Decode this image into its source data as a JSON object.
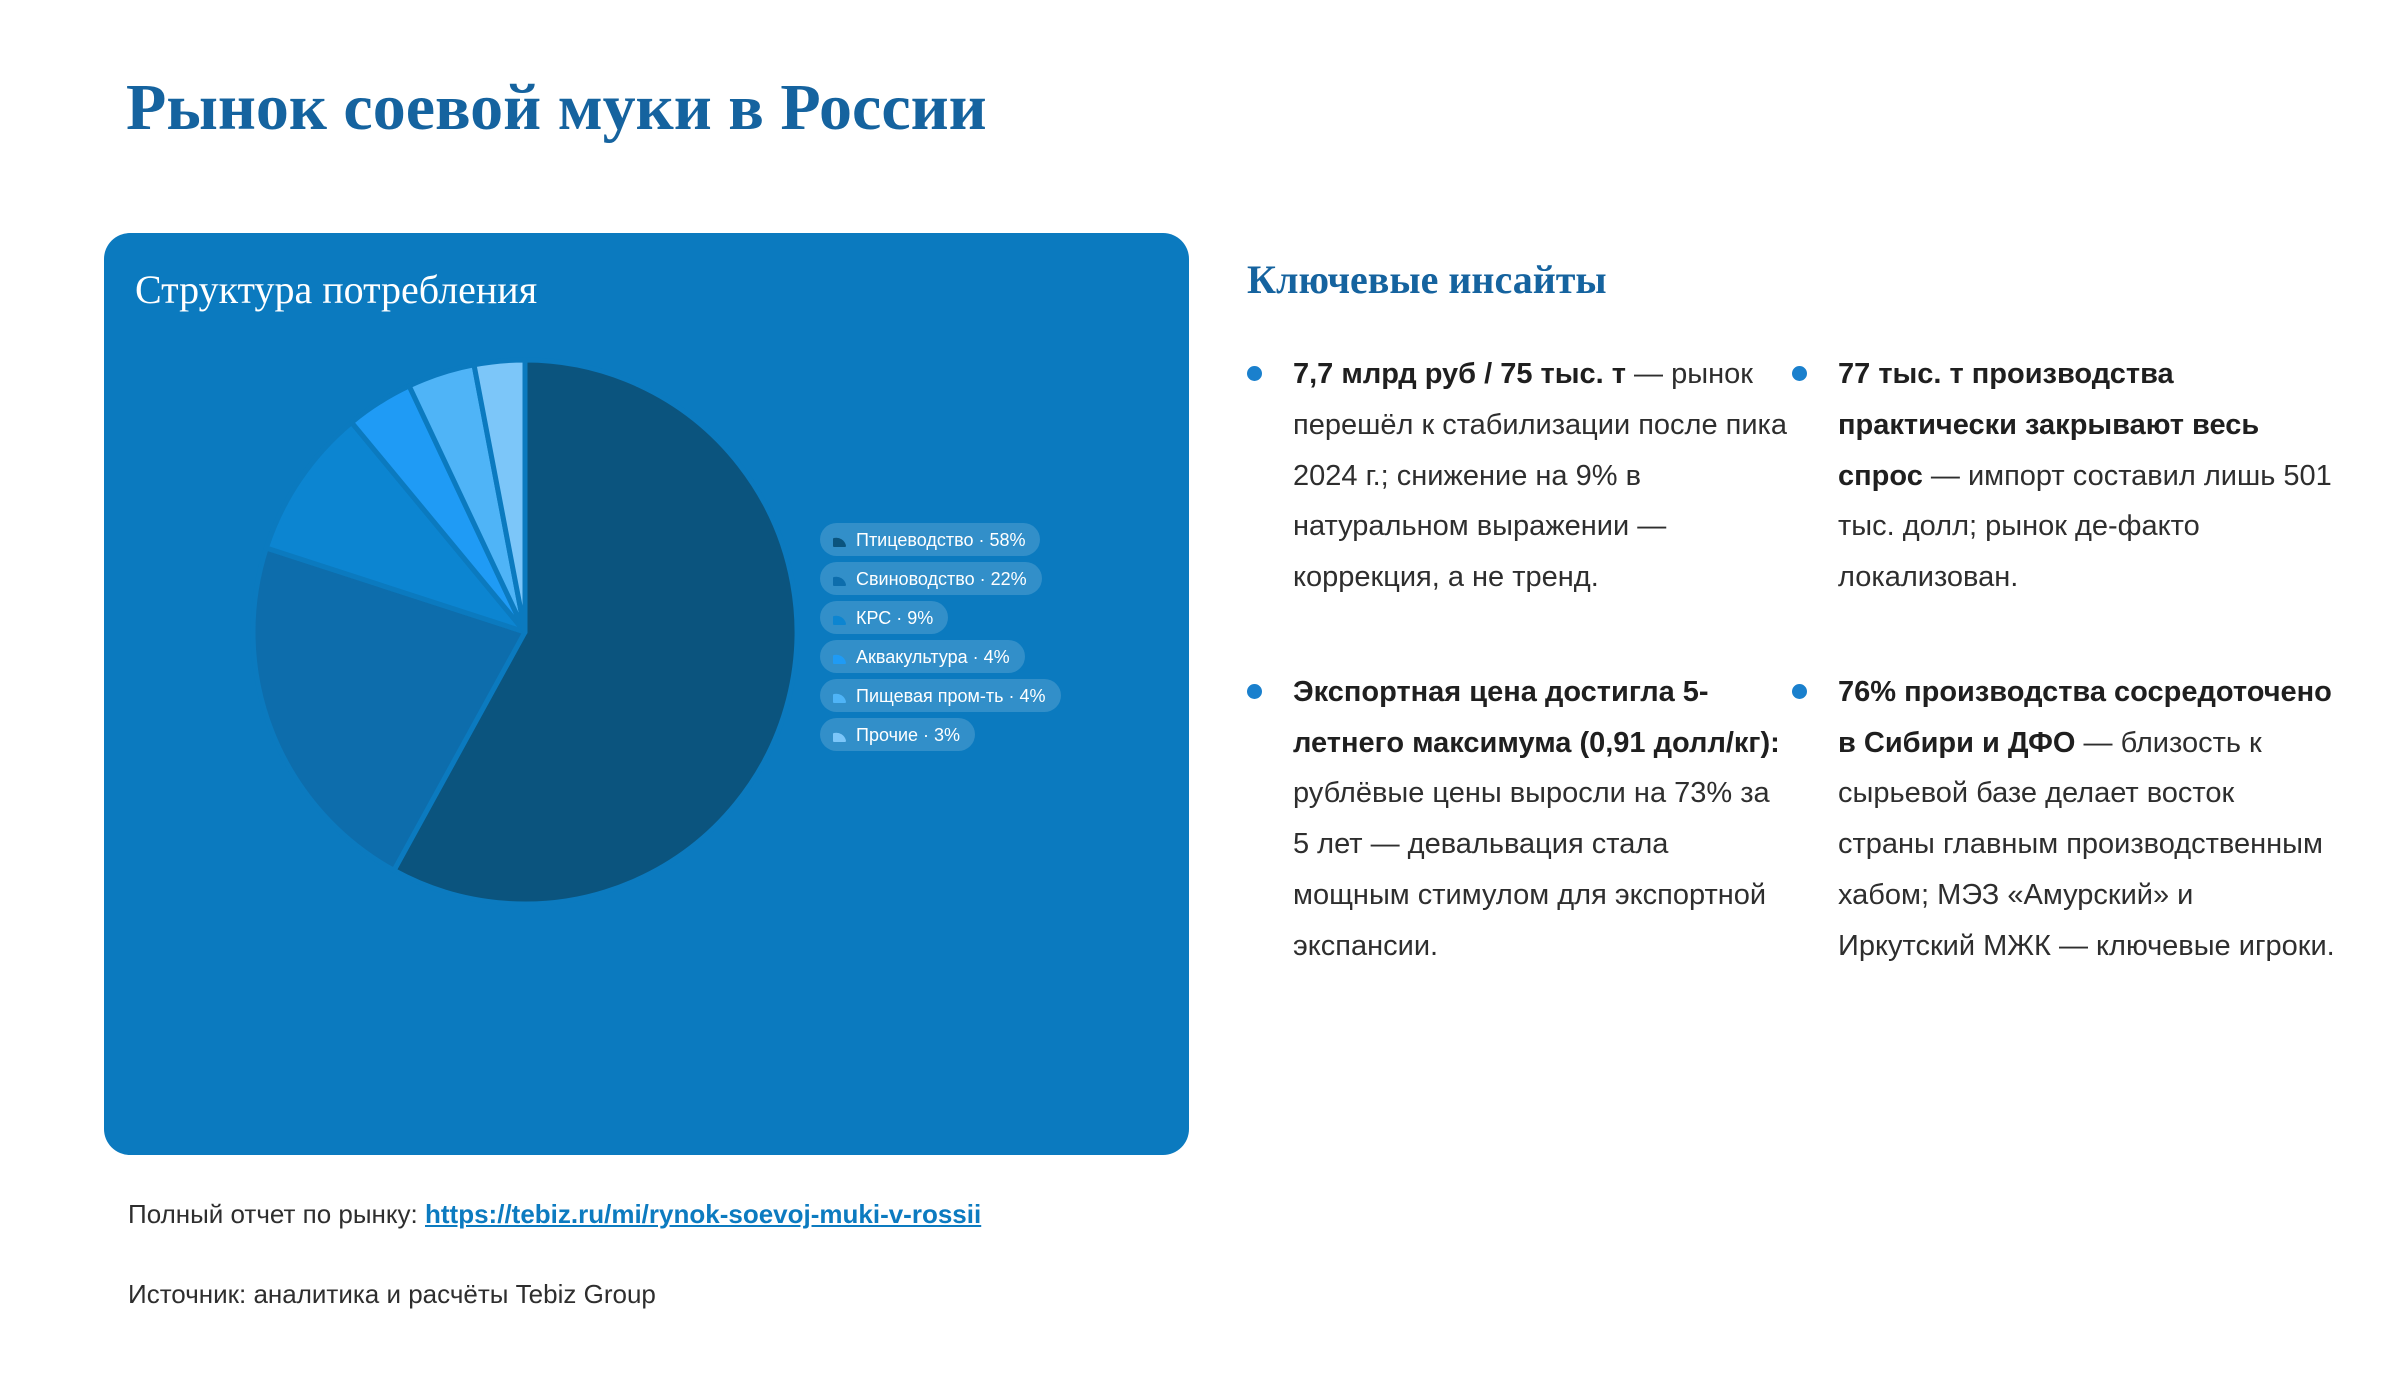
{
  "page": {
    "title": "Рынок соевой муки в России"
  },
  "card": {
    "title": "Структура потребления"
  },
  "chart_data": {
    "type": "pie",
    "title": "Структура потребления",
    "categories": [
      "Птицеводство",
      "Свиноводство",
      "КРС",
      "Аквакультура",
      "Пищевая пром-ть",
      "Прочие"
    ],
    "values": [
      58,
      22,
      9,
      4,
      4,
      3
    ],
    "unit": "%",
    "colors": [
      "#0b547e",
      "#0d6dac",
      "#0c85d1",
      "#1f9bf5",
      "#4fb4f7",
      "#7cc6f9"
    ],
    "label_separator": " · ",
    "legend_position": "right",
    "start_angle_deg": 0,
    "direction": "clockwise",
    "slice_gap_color": "#0b7abf"
  },
  "insights": {
    "heading": "Ключевые инсайты",
    "items": [
      {
        "bold": "7,7 млрд руб / 75 тыс. т",
        "text": " — рынок перешёл к стабилизации после пика 2024 г.; снижение на 9% в натуральном выражении — коррекция, а не тренд."
      },
      {
        "bold": "77 тыс. т производства практически закрывают весь спрос",
        "text": " — импорт составил лишь 501 тыс. долл; рынок де-факто локализован."
      },
      {
        "bold": "Экспортная цена достигла 5-летнего максимума (0,91 долл/кг):",
        "text": " рублёвые цены выросли на 73% за 5 лет — девальвация стала мощным стимулом для экспортной экспансии."
      },
      {
        "bold": "76% производства сосредоточено в Сибири и ДФО",
        "text": " — близость к сырьевой базе делает восток страны главным производственным хабом; МЭЗ «Амурский» и Иркутский МЖК — ключевые игроки."
      }
    ]
  },
  "footer": {
    "report_label": "Полный отчет по рынку:",
    "report_url": "https://tebiz.ru/mi/rynok-soevoj-muki-v-rossii",
    "source": "Источник: аналитика и расчёты Tebiz Group"
  },
  "colors": {
    "heading_blue": "#15639f",
    "card_background": "#0b7abf",
    "bullet": "#1a80cd",
    "link": "#0c7bc0",
    "body_text": "#2e2e2e"
  }
}
